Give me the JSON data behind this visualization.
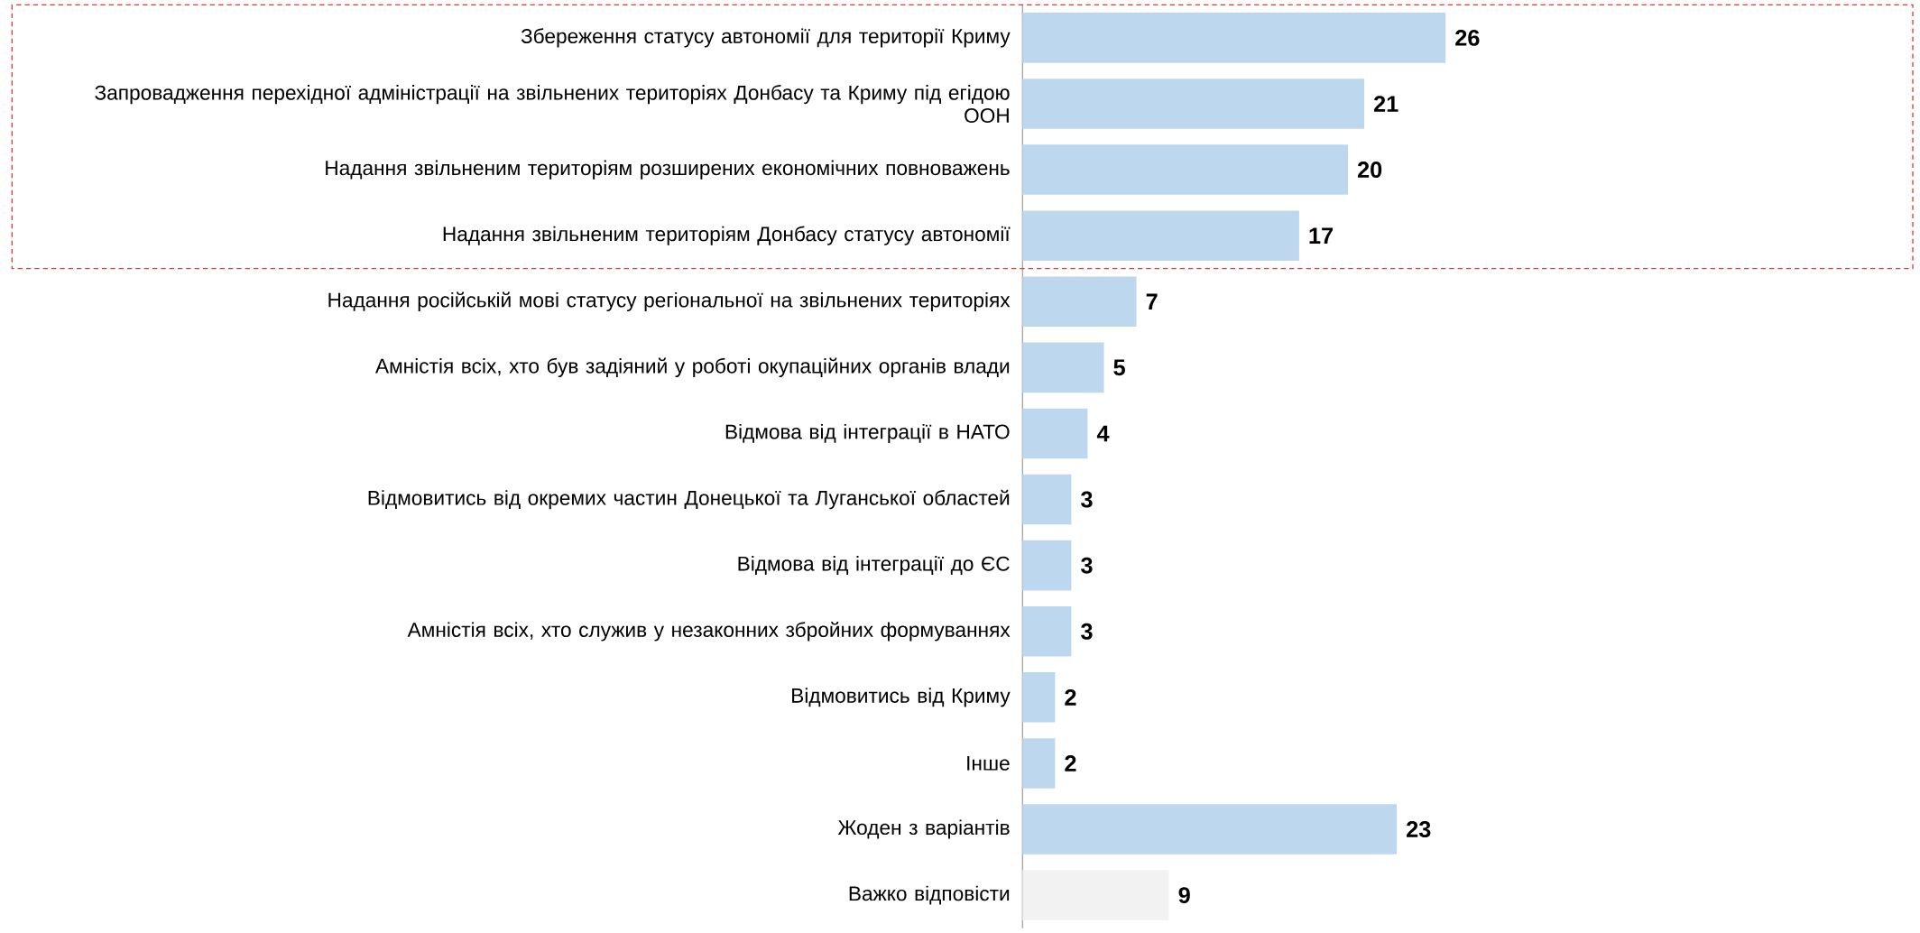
{
  "chart_data": {
    "type": "bar",
    "orientation": "horizontal",
    "data_labels": true,
    "categories": [
      "Збереження статусу автономії для території Криму",
      "Запровадження перехідної адміністрації на звільнених територіях Донбасу та Криму під егідою ООН",
      "Надання звільненим територіям розширених економічних повноважень",
      "Надання звільненим територіям Донбасу статусу автономії",
      "Надання російській мові статусу регіональної на звільнених територіях",
      "Амністія всіх, хто був задіяний у роботі окупаційних органів влади",
      "Відмова від інтеграції в НАТО",
      "Відмовитись від окремих частин Донецької та Луганської областей",
      "Відмова від інтеграції до ЄС",
      "Амністія всіх, хто служив у незаконних збройних формуваннях",
      "Відмовитись від Криму",
      "Інше",
      "Жоден з варіантів",
      "Важко відповісти"
    ],
    "values": [
      26,
      21,
      20,
      17,
      7,
      5,
      4,
      3,
      3,
      3,
      2,
      2,
      23,
      9
    ],
    "colors": [
      "#bdd7ee",
      "#bdd7ee",
      "#bdd7ee",
      "#bdd7ee",
      "#bdd7ee",
      "#bdd7ee",
      "#bdd7ee",
      "#bdd7ee",
      "#bdd7ee",
      "#bdd7ee",
      "#bdd7ee",
      "#bdd7ee",
      "#bdd7ee",
      "#f2f2f2"
    ]
  }
}
